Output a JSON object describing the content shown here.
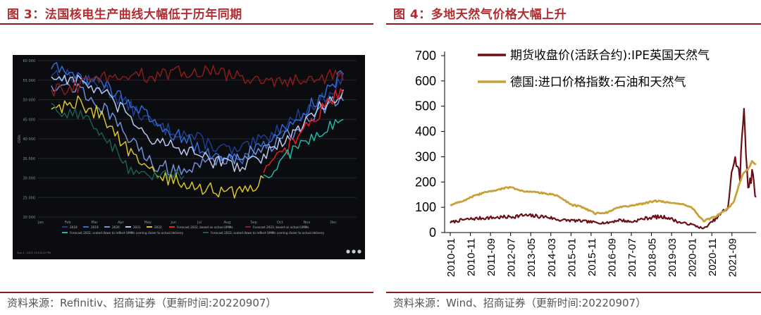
{
  "figure3": {
    "title": "图 3：法国核电生产曲线大幅低于历年同期",
    "source": "资料来源：Refinitiv、招商证券（更新时间:20220907）",
    "chart_data": {
      "type": "line",
      "ylabel": "GWe",
      "yticks": [
        20000,
        25000,
        30000,
        35000,
        40000,
        45000,
        50000,
        55000,
        60000
      ],
      "ytick_labels": [
        "20 000",
        "25 000",
        "30 000",
        "35 000",
        "40 000",
        "45 000",
        "50 000",
        "55 000",
        "60 000"
      ],
      "ylim": [
        20000,
        60000
      ],
      "categories": [
        "Jan",
        "Feb",
        "Mar",
        "Apr",
        "May",
        "Jun",
        "Jul",
        "Aug",
        "Sep",
        "Oct",
        "Nov",
        "Dec"
      ],
      "series": [
        {
          "name": "2018",
          "color": "#1f3d8f",
          "values": [
            57000,
            55500,
            53000,
            48000,
            43000,
            41500,
            38500,
            36500,
            40000,
            44500,
            49000,
            55000
          ]
        },
        {
          "name": "2019",
          "color": "#2e6ad1",
          "values": [
            58500,
            56000,
            54000,
            49000,
            43500,
            40000,
            36000,
            34500,
            38500,
            44000,
            50000,
            56500
          ]
        },
        {
          "name": "2020",
          "color": "#6f8fd6",
          "values": [
            54000,
            53000,
            47500,
            39500,
            33000,
            32000,
            34000,
            35500,
            37500,
            41000,
            46500,
            51500
          ]
        },
        {
          "name": "2021",
          "color": "#b9c9ee",
          "values": [
            56000,
            55000,
            51500,
            45000,
            39000,
            37000,
            34500,
            33000,
            35500,
            40500,
            47500,
            52500
          ]
        },
        {
          "name": "2022",
          "color": "#d7c52b",
          "values": [
            47500,
            49500,
            45500,
            36000,
            30500,
            28500,
            27000,
            26000,
            29500,
            null,
            null,
            null
          ]
        },
        {
          "name": "Forecast 2022, based on actual UMMs",
          "color": "#e41d1d",
          "values": [
            null,
            null,
            null,
            null,
            null,
            null,
            null,
            null,
            31000,
            38500,
            46000,
            53000
          ]
        },
        {
          "name": "Forecast 2023, based on actual UMMs",
          "color": "#8b1a1a",
          "values": [
            52000,
            53500,
            56000,
            56500,
            56000,
            57000,
            57500,
            56000,
            54000,
            55000,
            55500,
            56500
          ]
        },
        {
          "name": "Forecast 2022, scaled down to reflect UMMs coming closer to actual delivery",
          "color": "#1fb8a5",
          "values": [
            null,
            null,
            null,
            null,
            null,
            null,
            null,
            null,
            30000,
            36500,
            41500,
            44500
          ]
        },
        {
          "name": "Forecast 2023, scaled down to reflect UMMs coming closer to actual delivery",
          "color": "#1d5c50",
          "values": [
            48000,
            46500,
            41000,
            31500,
            31000,
            30500,
            null,
            null,
            null,
            null,
            null,
            null
          ]
        }
      ],
      "legend_position": "bottom",
      "footer_note": "Sep 1, 2022 15:04:22 PM"
    }
  },
  "figure4": {
    "title": "图 4：多地天然气价格大幅上升",
    "source": "资料来源：Wind、招商证券（更新时间:20220907）",
    "chart_data": {
      "type": "line",
      "ylim": [
        0,
        700
      ],
      "yticks": [
        0,
        100,
        200,
        300,
        400,
        500,
        600,
        700
      ],
      "xticks": [
        "2010-01",
        "2010-11",
        "2011-09",
        "2012-07",
        "2013-05",
        "2014-03",
        "2015-01",
        "2015-11",
        "2016-09",
        "2017-07",
        "2018-05",
        "2019-03",
        "2020-01",
        "2020-11",
        "2021-09"
      ],
      "x": [
        "2010-01",
        "2010-07",
        "2011-01",
        "2011-07",
        "2012-01",
        "2012-07",
        "2013-01",
        "2013-07",
        "2014-01",
        "2014-07",
        "2015-01",
        "2015-07",
        "2016-01",
        "2016-07",
        "2017-01",
        "2017-07",
        "2018-01",
        "2018-07",
        "2019-01",
        "2019-07",
        "2020-01",
        "2020-07",
        "2021-01",
        "2021-07",
        "2021-10",
        "2022-01",
        "2022-03",
        "2022-05",
        "2022-07",
        "2022-09"
      ],
      "series": [
        {
          "name": "期货收盘价(活跃合约):IPE英国天然气",
          "color": "#6b0f17",
          "values": [
            40,
            50,
            55,
            58,
            60,
            62,
            68,
            65,
            62,
            50,
            48,
            45,
            40,
            38,
            50,
            42,
            55,
            62,
            60,
            40,
            32,
            15,
            55,
            100,
            300,
            220,
            500,
            180,
            230,
            140
          ]
        },
        {
          "name": "德国:进口价格指数:石油和天然气",
          "color": "#c8a13a",
          "values": [
            108,
            125,
            145,
            160,
            170,
            180,
            165,
            160,
            155,
            145,
            110,
            100,
            75,
            80,
            100,
            105,
            115,
            125,
            120,
            115,
            100,
            45,
            65,
            95,
            125,
            200,
            240,
            250,
            280,
            270
          ]
        }
      ]
    }
  }
}
